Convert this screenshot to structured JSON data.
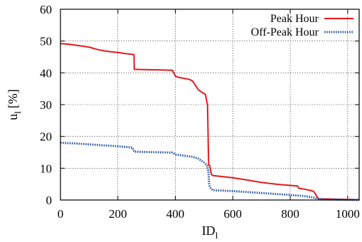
{
  "chart_data": {
    "type": "line",
    "xlabel": "ID",
    "xlabel_sub": "l",
    "ylabel": "u",
    "ylabel_sub": "l",
    "ylabel_unit": "[%]",
    "xlim": [
      0,
      1040
    ],
    "ylim": [
      0,
      60
    ],
    "xticks": [
      0,
      200,
      400,
      600,
      800,
      1000
    ],
    "yticks": [
      0,
      10,
      20,
      30,
      40,
      50,
      60
    ],
    "grid": true,
    "legend_position": "top-right",
    "series": [
      {
        "name": "Peak Hour",
        "color": "#e41a1c",
        "style": "solid",
        "x": [
          0,
          30,
          60,
          100,
          130,
          160,
          200,
          230,
          250,
          256,
          257,
          300,
          350,
          390,
          400,
          410,
          450,
          460,
          480,
          490,
          505,
          510,
          512,
          515,
          516,
          520,
          525,
          530,
          550,
          600,
          650,
          700,
          750,
          800,
          825,
          830,
          850,
          880,
          885,
          895,
          900,
          1040
        ],
        "y": [
          49.2,
          49.0,
          48.6,
          48.1,
          47.3,
          46.8,
          46.4,
          46.0,
          45.8,
          45.7,
          41.1,
          41.0,
          40.9,
          40.8,
          39.0,
          38.6,
          37.9,
          37.4,
          34.7,
          34.0,
          33.2,
          30.7,
          30.1,
          15.0,
          11.0,
          10.8,
          8.2,
          7.7,
          7.5,
          7.0,
          6.3,
          5.5,
          5.0,
          4.6,
          4.4,
          3.7,
          3.4,
          2.8,
          2.3,
          0.8,
          0.4,
          0.1
        ]
      },
      {
        "name": "Off-Peak Hour",
        "color": "#2c5aa0",
        "style": "dotted",
        "x": [
          0,
          50,
          100,
          150,
          200,
          250,
          257,
          300,
          350,
          390,
          400,
          460,
          480,
          500,
          510,
          515,
          518,
          520,
          530,
          550,
          600,
          700,
          800,
          850,
          880,
          895,
          900,
          1040
        ],
        "y": [
          18.0,
          17.8,
          17.5,
          17.2,
          16.9,
          16.5,
          15.2,
          15.1,
          15.0,
          14.9,
          14.3,
          13.6,
          13.0,
          11.8,
          11.0,
          9.0,
          5.0,
          4.0,
          3.1,
          3.0,
          2.8,
          2.2,
          1.6,
          1.2,
          0.8,
          0.4,
          0.2,
          0.0
        ]
      }
    ]
  }
}
